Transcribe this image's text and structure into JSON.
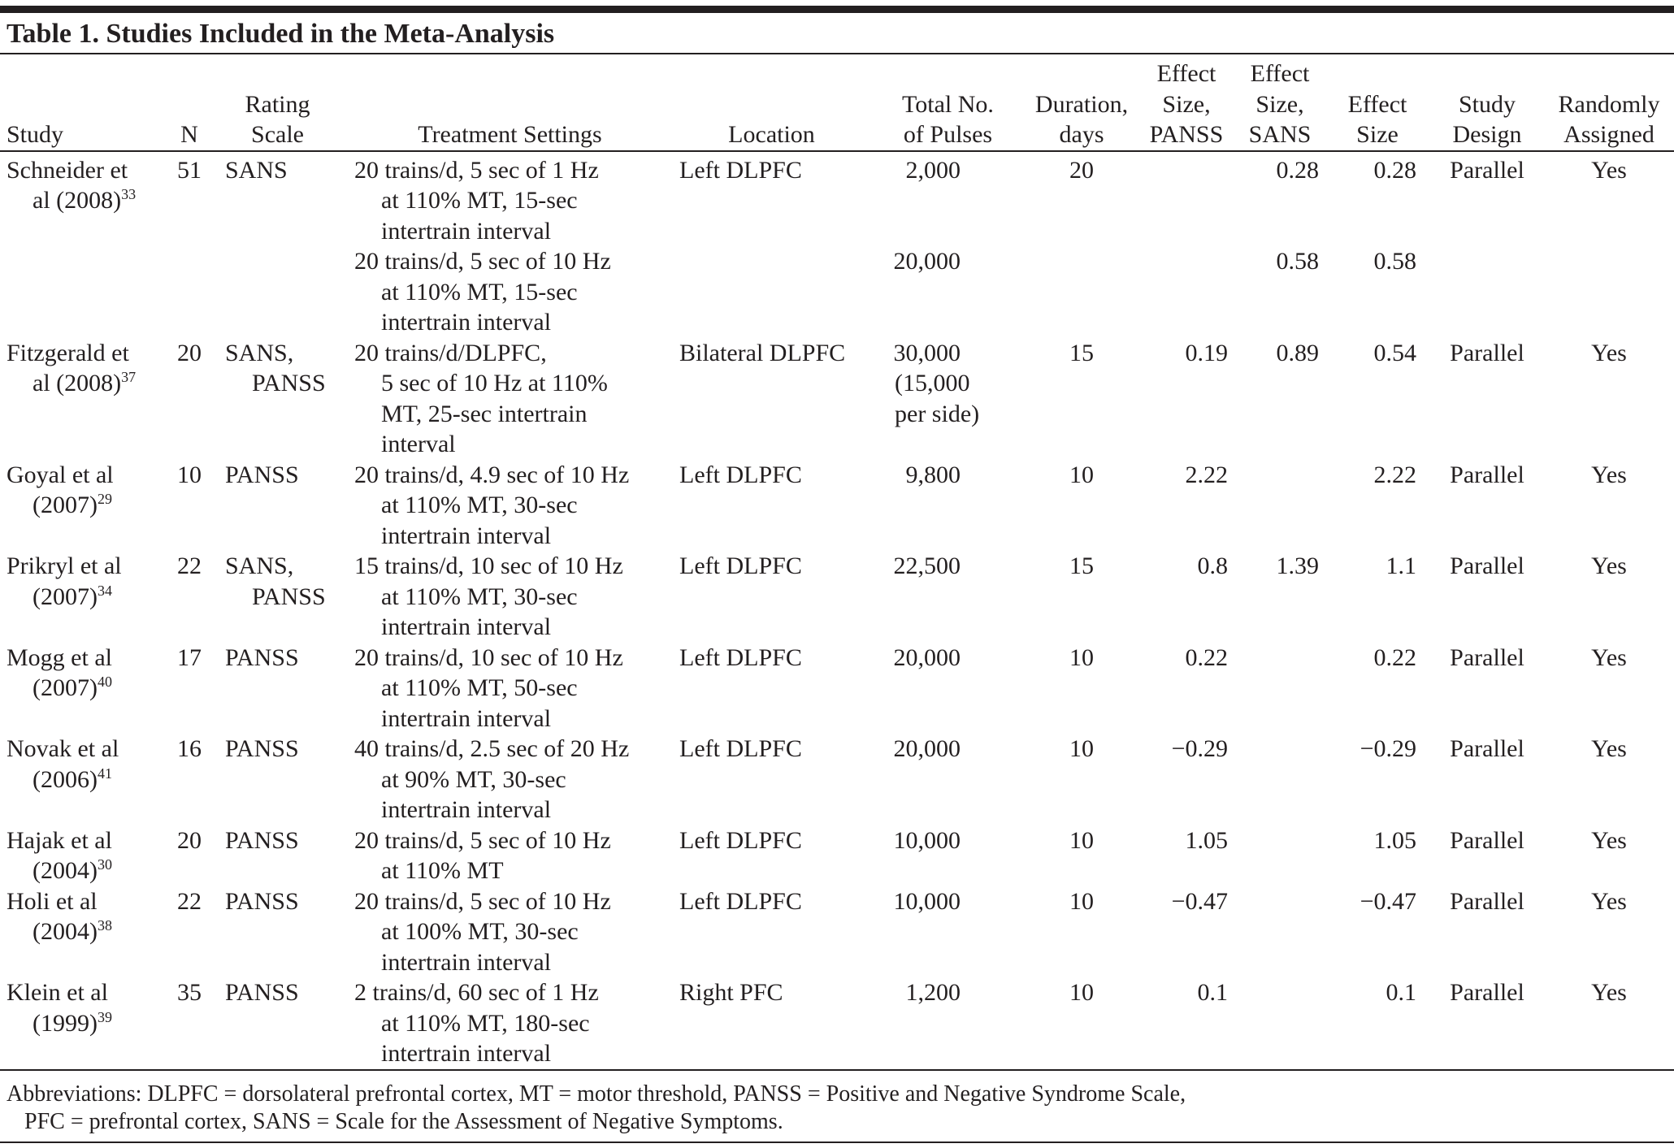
{
  "title": "Table 1. Studies Included in the Meta-Analysis",
  "table": {
    "header": [
      [
        "Study"
      ],
      [
        "N"
      ],
      [
        "Rating",
        "Scale"
      ],
      [
        "Treatment Settings"
      ],
      [
        "Location"
      ],
      [
        "Total No.",
        "of Pulses"
      ],
      [
        "Duration,",
        "days"
      ],
      [
        "Effect",
        "Size,",
        "PANSS"
      ],
      [
        "Effect",
        "Size,",
        "SANS"
      ],
      [
        "Effect",
        "Size"
      ],
      [
        "Study",
        "Design"
      ],
      [
        "Randomly",
        "Assigned"
      ]
    ],
    "rows": [
      [
        {
          "lines": [
            "Schneider et",
            "al (2008)"
          ],
          "ref": "33"
        },
        "51",
        "SANS",
        [
          "20 trains/d, 5 sec of 1 Hz",
          "at 110% MT, 15-sec",
          "intertrain interval"
        ],
        "Left DLPFC",
        "2,000",
        "20",
        null,
        "0.28",
        "0.28",
        "Parallel",
        "Yes"
      ],
      [
        null,
        null,
        null,
        [
          "20 trains/d, 5 sec of 10 Hz",
          "at 110% MT, 15-sec",
          "intertrain interval"
        ],
        null,
        "20,000",
        null,
        null,
        "0.58",
        "0.58",
        null,
        null
      ],
      [
        {
          "lines": [
            "Fitzgerald et",
            "al (2008)"
          ],
          "ref": "37"
        },
        "20",
        [
          "SANS,",
          "PANSS"
        ],
        [
          "20 trains/d/DLPFC,",
          "5 sec of 10 Hz at 110%",
          "MT, 25-sec intertrain",
          "interval"
        ],
        "Bilateral DLPFC",
        [
          "30,000",
          "(15,000",
          "per side)"
        ],
        "15",
        "0.19",
        "0.89",
        "0.54",
        "Parallel",
        "Yes"
      ],
      [
        {
          "lines": [
            "Goyal et al",
            "(2007)"
          ],
          "ref": "29"
        },
        "10",
        "PANSS",
        [
          "20 trains/d, 4.9 sec of 10 Hz",
          "at 110% MT, 30-sec",
          "intertrain interval"
        ],
        "Left DLPFC",
        "9,800",
        "10",
        "2.22",
        null,
        "2.22",
        "Parallel",
        "Yes"
      ],
      [
        {
          "lines": [
            "Prikryl et al",
            "(2007)"
          ],
          "ref": "34"
        },
        "22",
        [
          "SANS,",
          "PANSS"
        ],
        [
          "15 trains/d, 10 sec of 10 Hz",
          "at 110% MT, 30-sec",
          "intertrain interval"
        ],
        "Left DLPFC",
        "22,500",
        "15",
        "0.8",
        "1.39",
        "1.1",
        "Parallel",
        "Yes"
      ],
      [
        {
          "lines": [
            "Mogg et al",
            "(2007)"
          ],
          "ref": "40"
        },
        "17",
        "PANSS",
        [
          "20 trains/d, 10 sec of 10 Hz",
          "at 110% MT, 50-sec",
          "intertrain interval"
        ],
        "Left DLPFC",
        "20,000",
        "10",
        "0.22",
        null,
        "0.22",
        "Parallel",
        "Yes"
      ],
      [
        {
          "lines": [
            "Novak et al",
            "(2006)"
          ],
          "ref": "41"
        },
        "16",
        "PANSS",
        [
          "40 trains/d, 2.5 sec of 20 Hz",
          "at 90% MT, 30-sec",
          "intertrain interval"
        ],
        "Left DLPFC",
        "20,000",
        "10",
        "−0.29",
        null,
        "−0.29",
        "Parallel",
        "Yes"
      ],
      [
        {
          "lines": [
            "Hajak et al",
            "(2004)"
          ],
          "ref": "30"
        },
        "20",
        "PANSS",
        [
          "20 trains/d, 5 sec of 10 Hz",
          "at 110% MT"
        ],
        "Left DLPFC",
        "10,000",
        "10",
        "1.05",
        null,
        "1.05",
        "Parallel",
        "Yes"
      ],
      [
        {
          "lines": [
            "Holi et al",
            "(2004)"
          ],
          "ref": "38"
        },
        "22",
        "PANSS",
        [
          "20 trains/d, 5 sec of 10 Hz",
          "at 100% MT, 30-sec",
          "intertrain interval"
        ],
        "Left DLPFC",
        "10,000",
        "10",
        "−0.47",
        null,
        "−0.47",
        "Parallel",
        "Yes"
      ],
      [
        {
          "lines": [
            "Klein et al",
            "(1999)"
          ],
          "ref": "39"
        },
        "35",
        "PANSS",
        [
          "2 trains/d, 60 sec of 1 Hz",
          "at 110% MT, 180-sec",
          "intertrain interval"
        ],
        "Right PFC",
        "1,200",
        "10",
        "0.1",
        null,
        "0.1",
        "Parallel",
        "Yes"
      ]
    ]
  },
  "footnote": [
    "Abbreviations: DLPFC = dorsolateral prefrontal cortex, MT = motor threshold, PANSS = Positive and Negative Syndrome Scale,",
    "PFC = prefrontal cortex, SANS = Scale for the Assessment of Negative Symptoms."
  ]
}
